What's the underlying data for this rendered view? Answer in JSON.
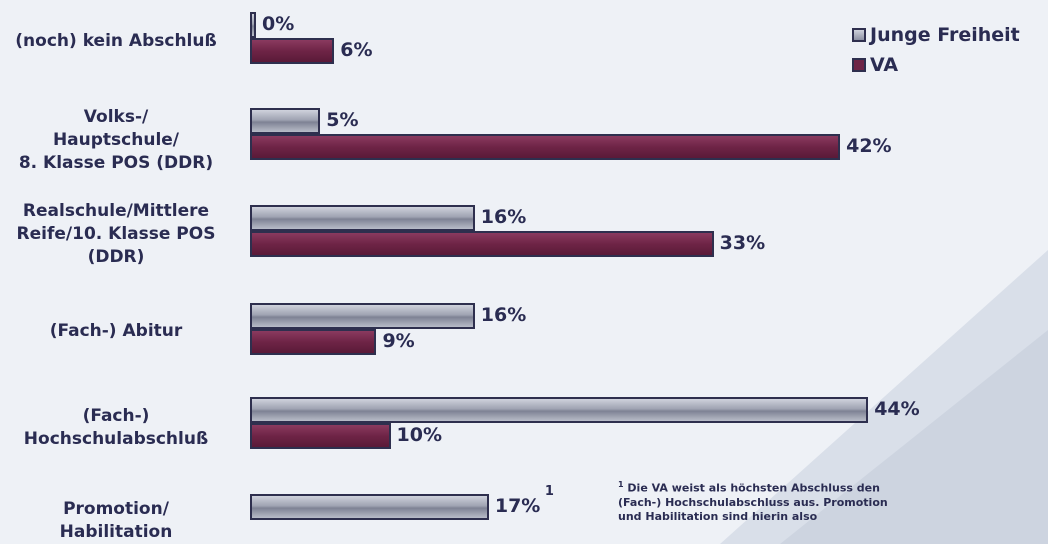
{
  "chart_data": {
    "type": "bar",
    "orientation": "horizontal",
    "categories": [
      "(noch) kein Abschluß",
      "Volks-/ Hauptschule/ 8. Klasse POS (DDR)",
      "Realschule/Mittlere Reife/10. Klasse POS (DDR)",
      "(Fach-) Abitur",
      "(Fach-) Hochschulabschluß",
      "Promotion/ Habilitation"
    ],
    "category_lines": [
      [
        "(noch) kein Abschluß"
      ],
      [
        "Volks-/",
        "Hauptschule/",
        "8. Klasse POS (DDR)"
      ],
      [
        "Realschule/Mittlere",
        "Reife/10. Klasse POS",
        "(DDR)"
      ],
      [
        "(Fach-) Abitur"
      ],
      [
        "(Fach-)",
        "Hochschulabschluß"
      ],
      [
        "Promotion/",
        "Habilitation"
      ]
    ],
    "series": [
      {
        "name": "Junge Freiheit",
        "values": [
          0,
          5,
          16,
          16,
          44,
          17
        ],
        "labels": [
          "0%",
          "5%",
          "16%",
          "16%",
          "44%",
          "17%"
        ],
        "color": "#9fa3b2"
      },
      {
        "name": "VA",
        "values": [
          6,
          42,
          33,
          9,
          10,
          null
        ],
        "labels": [
          "6%",
          "42%",
          "33%",
          "9%",
          "10%",
          null
        ],
        "color": "#6e2446"
      }
    ],
    "value_unit": "%",
    "xlim": [
      0,
      45
    ],
    "legend": "top-right",
    "annotations": [
      {
        "category": "Promotion/ Habilitation",
        "series": "Junge Freiheit",
        "mark": "1"
      }
    ]
  },
  "legend": {
    "jf": "Junge Freiheit",
    "va": "VA"
  },
  "footnote": {
    "mark": "1",
    "text": "Die VA weist als höchsten Abschluss den (Fach-) Hochschulabschluss aus. Promotion und Habilitation sind hierin also"
  }
}
